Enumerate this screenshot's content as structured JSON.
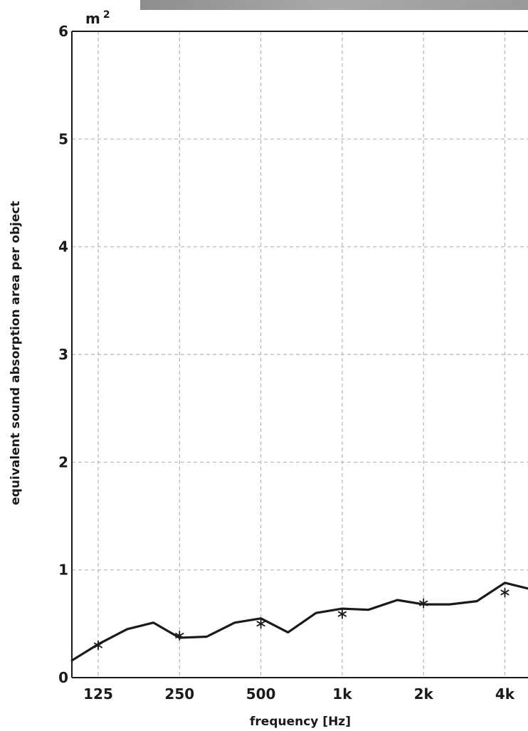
{
  "chart_data": {
    "type": "line",
    "title": "",
    "xlabel": "frequency [Hz]",
    "ylabel": "equivalent sound absorption area per object",
    "yunit": "m",
    "yunit_sup": "2",
    "ylim": [
      0,
      6
    ],
    "yticks": [
      0,
      1,
      2,
      3,
      4,
      5,
      6
    ],
    "xscale": "log",
    "xticks": [
      {
        "value": 125,
        "label": "125"
      },
      {
        "value": 250,
        "label": "250"
      },
      {
        "value": 500,
        "label": "500"
      },
      {
        "value": 1000,
        "label": "1k"
      },
      {
        "value": 2000,
        "label": "2k"
      },
      {
        "value": 4000,
        "label": "4k"
      }
    ],
    "grid": true,
    "series": [
      {
        "style": "line",
        "color": "#1a1a1a",
        "x": [
          100,
          125,
          160,
          200,
          250,
          315,
          400,
          500,
          630,
          800,
          1000,
          1250,
          1600,
          2000,
          2500,
          3150,
          4000,
          5000
        ],
        "y": [
          0.16,
          0.31,
          0.45,
          0.51,
          0.37,
          0.38,
          0.51,
          0.55,
          0.42,
          0.6,
          0.64,
          0.63,
          0.72,
          0.68,
          0.68,
          0.71,
          0.88,
          0.82
        ]
      },
      {
        "style": "markers",
        "marker": "asterisk",
        "color": "#1a1a1a",
        "x": [
          125,
          250,
          500,
          1000,
          2000,
          4000
        ],
        "y": [
          0.3,
          0.39,
          0.5,
          0.59,
          0.69,
          0.79
        ]
      }
    ]
  }
}
